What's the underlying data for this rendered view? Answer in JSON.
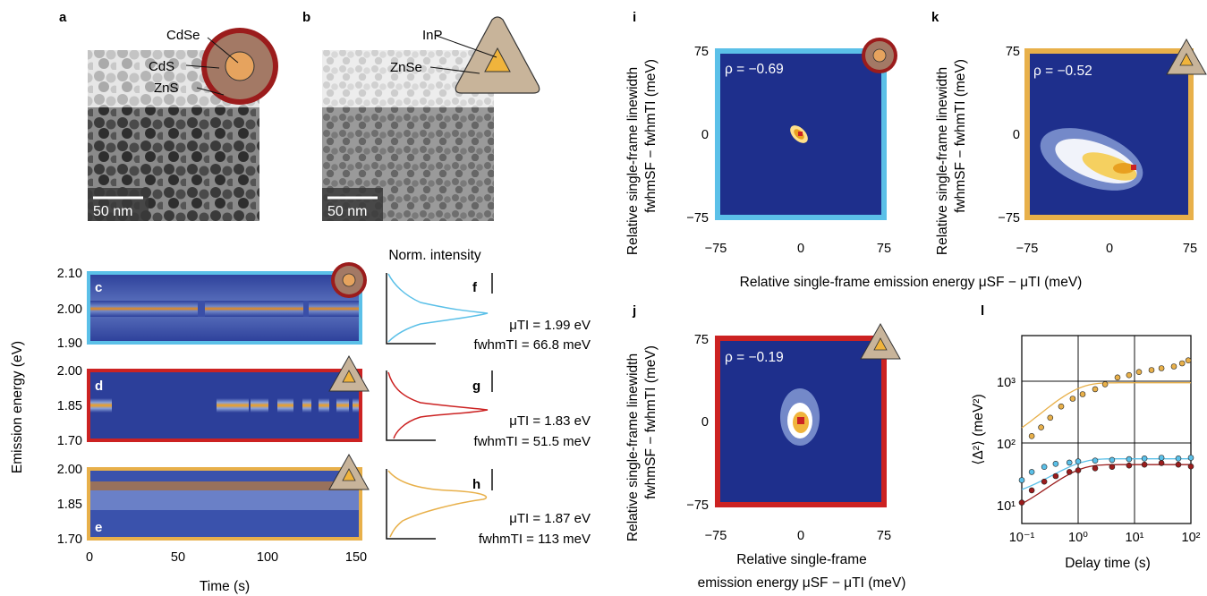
{
  "panel_labels": {
    "a": "a",
    "b": "b",
    "c": "c",
    "d": "d",
    "e": "e",
    "f": "f",
    "g": "g",
    "h": "h",
    "i": "i",
    "j": "j",
    "k": "k",
    "l": "l"
  },
  "schematics": {
    "a": {
      "core": "CdSe",
      "shell1": "CdS",
      "shell2": "ZnS"
    },
    "b": {
      "core": "InP",
      "shell": "ZnSe"
    }
  },
  "scale_bars": {
    "a": "50 nm",
    "b": "50 nm"
  },
  "colors": {
    "cdse": "#5bc0e8",
    "inp_znse": "#cc2222",
    "inp_znse_alt": "#e8b04a",
    "heatmap_bg": "#1e2f8c",
    "core_orange": "#e6a35e",
    "shell_brown": "#a37965",
    "shell_red": "#9b1c1c",
    "triangle": "#c8b49a",
    "triangle_core": "#f0b43c"
  },
  "labels": {
    "emission_axis": "Emission energy (eV)",
    "time_axis": "Time (s)",
    "norm_intensity": "Norm. intensity",
    "rel_x_top": "Relative single-frame emission energy μSF − μTI (meV)",
    "rel_x_j_line1": "Relative single-frame",
    "rel_x_j_line2": "emission energy μSF − μTI (meV)",
    "rel_y_line1": "Relative single-frame linewidth",
    "rel_y_line2": "fwhmSF − fwhmTI (meV)",
    "msd_y": "⟨Δ²⟩ (meV²)",
    "msd_x": "Delay time (s)"
  },
  "spectra_annotations": {
    "f": {
      "mu": "μTI = 1.99 eV",
      "fwhm": "fwhmTI = 66.8 meV"
    },
    "g": {
      "mu": "μTI = 1.83 eV",
      "fwhm": "fwhmTI = 51.5 meV"
    },
    "h": {
      "mu": "μTI = 1.87 eV",
      "fwhm": "fwhmTI = 113 meV"
    }
  },
  "correlations": {
    "i": "ρ = −0.69",
    "j": "ρ = −0.19",
    "k": "ρ = −0.52"
  },
  "chart_data": [
    {
      "panel": "c",
      "type": "heatmap",
      "title": "",
      "xlabel": "Time (s)",
      "ylabel": "Emission energy (eV)",
      "xlim": [
        0,
        150
      ],
      "ylim": [
        1.9,
        2.1
      ],
      "yticks": [
        "1.90",
        "2.00",
        "2.10"
      ],
      "center_eV": 1.99,
      "dark_intervals_s": [
        [
          54,
          62
        ],
        [
          119,
          123
        ]
      ]
    },
    {
      "panel": "d",
      "type": "heatmap",
      "xlim": [
        0,
        150
      ],
      "ylim": [
        1.7,
        2.0
      ],
      "yticks": [
        "1.70",
        "1.85",
        "2.00"
      ],
      "center_eV": 1.85,
      "on_intervals_s": [
        [
          0,
          13
        ],
        [
          70,
          87
        ],
        [
          88,
          98
        ],
        [
          104,
          112
        ],
        [
          117,
          122
        ],
        [
          126,
          132
        ],
        [
          137,
          144
        ],
        [
          146,
          150
        ]
      ]
    },
    {
      "panel": "e",
      "type": "heatmap",
      "xlim": [
        0,
        150
      ],
      "ylim": [
        1.7,
        2.0
      ],
      "yticks": [
        "1.70",
        "1.85",
        "2.00"
      ],
      "center_eV": 1.87,
      "xticks": [
        "0",
        "50",
        "100",
        "150"
      ]
    },
    {
      "panel": "f",
      "type": "line",
      "series": [
        {
          "values_center_eV": 1.99,
          "fwhm_meV": 66.8
        }
      ]
    },
    {
      "panel": "g",
      "type": "line",
      "series": [
        {
          "values_center_eV": 1.83,
          "fwhm_meV": 51.5
        }
      ]
    },
    {
      "panel": "h",
      "type": "line",
      "series": [
        {
          "values_center_eV": 1.87,
          "fwhm_meV": 113
        }
      ]
    },
    {
      "panel": "i",
      "type": "heatmap",
      "xlim": [
        -75,
        75
      ],
      "ylim": [
        -75,
        75
      ],
      "xticks": [
        "−75",
        "0",
        "75"
      ],
      "yticks": [
        "−75",
        "0",
        "75"
      ],
      "rho": -0.69
    },
    {
      "panel": "j",
      "type": "heatmap",
      "xlim": [
        -75,
        75
      ],
      "ylim": [
        -75,
        75
      ],
      "xticks": [
        "−75",
        "0",
        "75"
      ],
      "yticks": [
        "−75",
        "0",
        "75"
      ],
      "rho": -0.19
    },
    {
      "panel": "k",
      "type": "heatmap",
      "xlim": [
        -75,
        75
      ],
      "ylim": [
        -75,
        75
      ],
      "xticks": [
        "−75",
        "0",
        "75"
      ],
      "yticks": [
        "−75",
        "0",
        "75"
      ],
      "rho": -0.52
    },
    {
      "panel": "l",
      "type": "scatter",
      "xlabel": "Delay time (s)",
      "ylabel": "⟨Δ²⟩ (meV²)",
      "xscale": "log",
      "yscale": "log",
      "xlim": [
        0.1,
        100
      ],
      "ylim": [
        10,
        5000
      ],
      "xticks": [
        "10⁻¹",
        "10⁰",
        "10¹",
        "10²"
      ],
      "yticks": [
        "10¹",
        "10²",
        "10³"
      ],
      "series": [
        {
          "color": "#e8b04a",
          "x": [
            0.15,
            0.22,
            0.32,
            0.5,
            0.8,
            1.2,
            2,
            3,
            5,
            8,
            12,
            20,
            30,
            50,
            70,
            90
          ],
          "y": [
            180,
            240,
            330,
            480,
            620,
            720,
            850,
            1000,
            1250,
            1350,
            1500,
            1600,
            1700,
            1800,
            2000,
            2200
          ],
          "fit_plateau": 1050
        },
        {
          "color": "#5bc0e8",
          "x": [
            0.1,
            0.15,
            0.25,
            0.4,
            0.7,
            1,
            2,
            4,
            8,
            15,
            30,
            60,
            100
          ],
          "y": [
            42,
            55,
            65,
            72,
            75,
            78,
            80,
            82,
            84,
            86,
            88,
            86,
            88
          ],
          "fit_plateau": 85
        },
        {
          "color": "#9b1c1c",
          "x": [
            0.1,
            0.15,
            0.25,
            0.4,
            0.7,
            1,
            2,
            4,
            8,
            15,
            30,
            60,
            100
          ],
          "y": [
            20,
            30,
            40,
            48,
            55,
            58,
            62,
            65,
            68,
            70,
            74,
            70,
            66
          ],
          "fit_plateau": 70
        }
      ]
    }
  ]
}
